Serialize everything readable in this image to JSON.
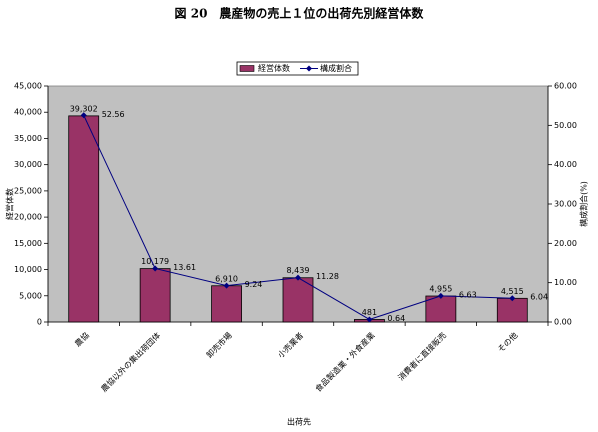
{
  "chart_data": {
    "type": "bar",
    "title": "図 20　農産物の売上１位の出荷先別経営体数",
    "x_label": "出荷先",
    "y_label": "経営体数",
    "y2_label": "構成割合(%)",
    "categories": [
      "農協",
      "農協以外の集出荷団体",
      "卸売市場",
      "小売業者",
      "食品製造業・外食産業",
      "消費者に直接販売",
      "その他"
    ],
    "series": [
      {
        "name": "経営体数",
        "type": "bar",
        "color": "#993366",
        "values": [
          39302,
          10179,
          6910,
          8439,
          481,
          4955,
          4515
        ],
        "value_labels": [
          "39,302",
          "10,179",
          "6,910",
          "8,439",
          "481",
          "4,955",
          "4,515"
        ]
      },
      {
        "name": "構成割合",
        "type": "line",
        "axis": "y2",
        "color": "#000080",
        "values": [
          52.56,
          13.61,
          9.24,
          11.28,
          0.64,
          6.63,
          6.04
        ]
      }
    ],
    "ylim": [
      0,
      45000
    ],
    "yticks": [
      {
        "value": 0,
        "label": "0"
      },
      {
        "value": 5000,
        "label": "5,000"
      },
      {
        "value": 10000,
        "label": "10,000"
      },
      {
        "value": 15000,
        "label": "15,000"
      },
      {
        "value": 20000,
        "label": "20,000"
      },
      {
        "value": 25000,
        "label": "25,000"
      },
      {
        "value": 30000,
        "label": "30,000"
      },
      {
        "value": 35000,
        "label": "35,000"
      },
      {
        "value": 40000,
        "label": "40,000"
      },
      {
        "value": 45000,
        "label": "45,000"
      }
    ],
    "y2lim": [
      0,
      60
    ],
    "y2ticks": [
      {
        "value": 0,
        "label": "0.00"
      },
      {
        "value": 10,
        "label": "10.00"
      },
      {
        "value": 20,
        "label": "20.00"
      },
      {
        "value": 30,
        "label": "30.00"
      },
      {
        "value": 40,
        "label": "40.00"
      },
      {
        "value": 50,
        "label": "50.00"
      },
      {
        "value": 60,
        "label": "60.00"
      }
    ],
    "plot_background": "#c0c0c0"
  }
}
